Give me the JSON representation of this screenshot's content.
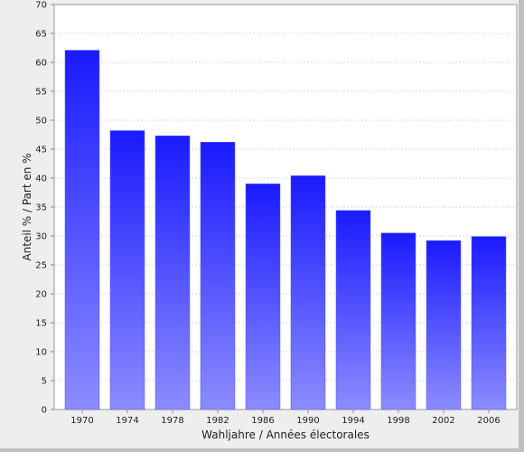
{
  "chart_data": {
    "type": "bar",
    "categories": [
      "1970",
      "1974",
      "1978",
      "1982",
      "1986",
      "1990",
      "1994",
      "1998",
      "2002",
      "2006"
    ],
    "values": [
      62.1,
      48.2,
      47.3,
      46.2,
      39.0,
      40.4,
      34.4,
      30.5,
      29.2,
      29.9
    ],
    "xlabel": "Wahljahre / Années électorales",
    "ylabel": "Anteil % / Part en %",
    "ylim": [
      0,
      70
    ],
    "yticks": [
      0,
      5,
      10,
      15,
      20,
      25,
      30,
      35,
      40,
      45,
      50,
      55,
      60,
      65,
      70
    ],
    "grid": true,
    "colors": {
      "bar_top": "#1a1aff",
      "bar_bottom": "#8c8cff",
      "plot_bg": "#ffffff",
      "gridline": "#d8d8d8"
    }
  }
}
